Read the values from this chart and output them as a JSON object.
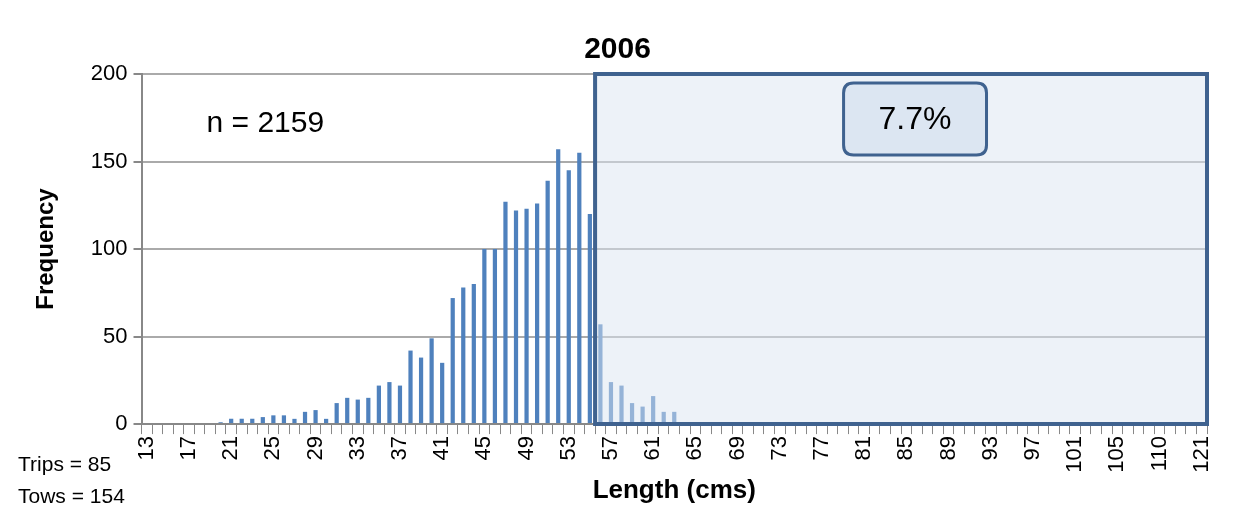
{
  "chart_data": {
    "type": "bar",
    "title": "2006",
    "xlabel": "Length (cms)",
    "ylabel": "Frequency",
    "categories": [
      "13",
      null,
      null,
      null,
      "17",
      null,
      null,
      null,
      "21",
      null,
      null,
      null,
      "25",
      null,
      null,
      null,
      "29",
      null,
      null,
      null,
      "33",
      null,
      null,
      null,
      "37",
      null,
      null,
      null,
      "41",
      null,
      null,
      null,
      "45",
      null,
      null,
      null,
      "49",
      null,
      null,
      null,
      "53",
      null,
      null,
      null,
      "57",
      null,
      null,
      null,
      "61",
      null,
      null,
      null,
      "65",
      null,
      null,
      null,
      "69",
      null,
      null,
      null,
      "73",
      null,
      null,
      null,
      "77",
      null,
      null,
      null,
      "81",
      null,
      null,
      null,
      "85",
      null,
      null,
      null,
      "89",
      null,
      null,
      null,
      "93",
      null,
      null,
      null,
      "97",
      null,
      null,
      null,
      "101",
      null,
      null,
      null,
      "105",
      null,
      null,
      null,
      "110",
      null,
      null,
      null,
      "121"
    ],
    "values": [
      0,
      0,
      0,
      0,
      0,
      0,
      0,
      1,
      3,
      3,
      3,
      4,
      5,
      5,
      3,
      7,
      8,
      3,
      12,
      15,
      14,
      15,
      22,
      24,
      22,
      42,
      38,
      49,
      35,
      72,
      78,
      80,
      100,
      100,
      127,
      122,
      123,
      126,
      139,
      157,
      145,
      155,
      120,
      57,
      24,
      22,
      12,
      10,
      16,
      7,
      7,
      0,
      0,
      0,
      0,
      0,
      0,
      0,
      0,
      0,
      0,
      0,
      0,
      0,
      0,
      0,
      0,
      0,
      0,
      0,
      0,
      0,
      0,
      0,
      0,
      0,
      0,
      0,
      0,
      0,
      0,
      0,
      0,
      0,
      0,
      0,
      0,
      0,
      0,
      0,
      0,
      0,
      0,
      0,
      0,
      0,
      0,
      0,
      0,
      0,
      0
    ],
    "color": "#4f81bd",
    "ylim": [
      0,
      200
    ],
    "yticks": [
      0,
      50,
      100,
      150,
      200
    ],
    "grid": "y",
    "annotations": [
      "n = 2159",
      "7.7%",
      "Trips = 85",
      "Tows = 154"
    ]
  }
}
